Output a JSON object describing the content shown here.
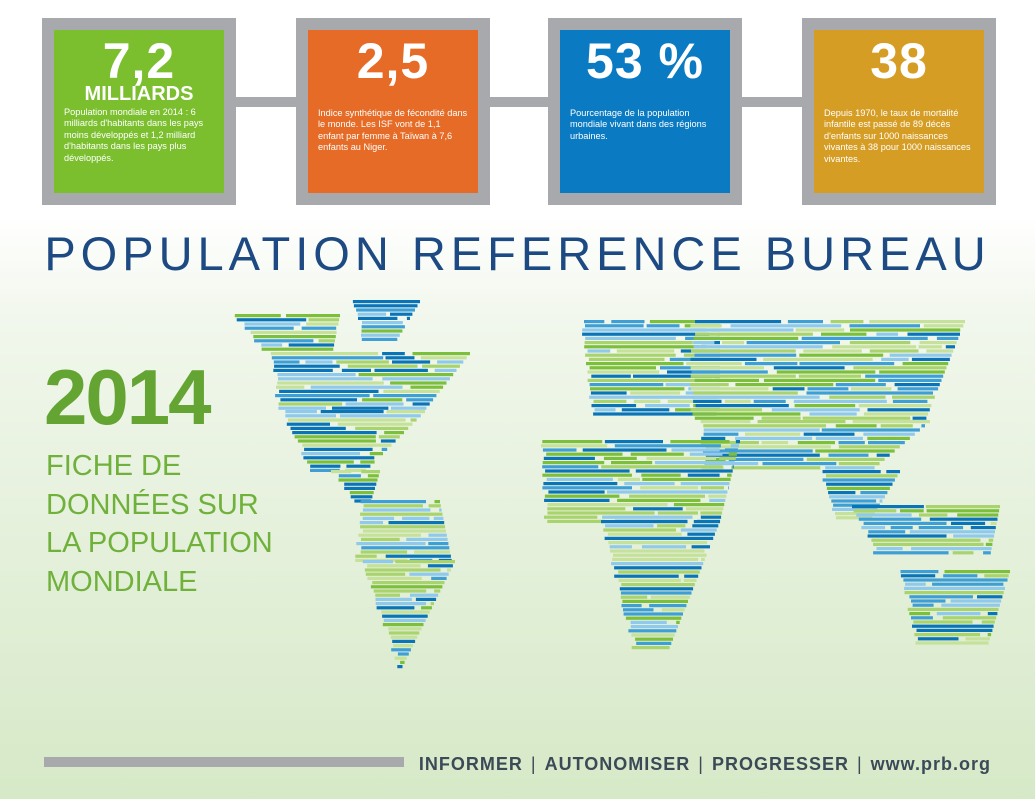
{
  "stats": [
    {
      "value": "7,2",
      "unit": "MILLIARDS",
      "description": "Population mondiale en 2014 : 6 milliards d'habitants dans les pays moins développés et 1,2 milliard d'habitants dans les pays plus développés.",
      "color": "#7bbf2f"
    },
    {
      "value": "2,5",
      "unit": "",
      "description": "Indice synthétique de fécondité dans le monde. Les ISF vont de 1,1 enfant par femme à Taïwan à 7,6 enfants au Niger.",
      "color": "#e56b26"
    },
    {
      "value": "53 %",
      "unit": "",
      "description": "Pourcentage de la population mondiale vivant dans des régions urbaines.",
      "color": "#0a7bc2"
    },
    {
      "value": "38",
      "unit": "",
      "description": "Depuis 1970, le taux de mortalité infantile est passé de 89 décès d'enfants sur 1000 naissances vivantes à 38 pour 1000 naissances vivantes.",
      "color": "#d69d25"
    }
  ],
  "brand": "POPULATION REFERENCE BUREAU",
  "year": "2014",
  "subtitle_lines": [
    "FICHE DE",
    "DONNÉES SUR",
    "LA POPULATION",
    "MONDIALE"
  ],
  "footer": {
    "taglines": [
      "INFORMER",
      "AUTONOMISER",
      "PROGRESSER"
    ],
    "separator": "|",
    "url": "www.prb.org"
  },
  "map_colors": [
    "#0a74b9",
    "#3d9fd6",
    "#8fc9ec",
    "#7cbf3a",
    "#a9d36d",
    "#c5e19a"
  ]
}
